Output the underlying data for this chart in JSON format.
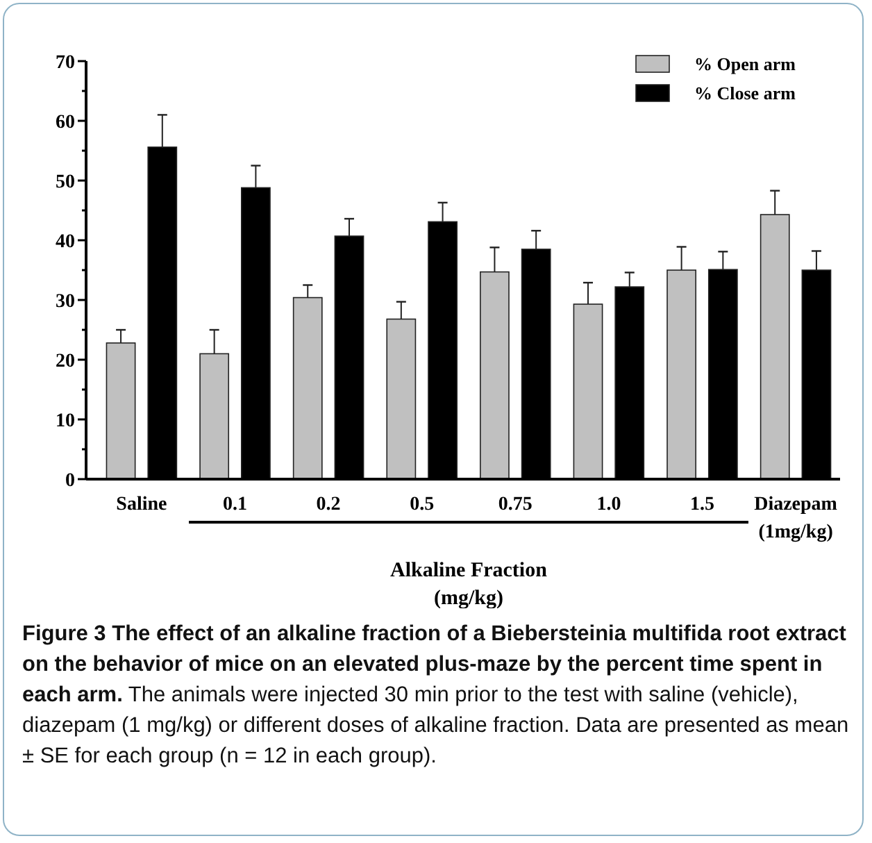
{
  "chart_data": {
    "type": "bar",
    "title": "Figure 3 The effect of an alkaline fraction of a Biebersteinia multifida root extract on the behavior of mice on an elevated plus-maze by the percent time spent in each arm.",
    "xlabel": "Alkaline Fraction\n(mg/kg)",
    "annotations": [
      "The animals were injected 30 min prior to the test with saline (vehicle), diazepam (1 mg/kg) or different doses of alkaline fraction. Data are presented as mean ± SE for each group (n = 12 in each group)."
    ],
    "categories": [
      "Saline",
      "0.1",
      "0.2",
      "0.5",
      "0.75",
      "1.0",
      "1.5",
      "Diazepam\n(1mg/kg)"
    ],
    "series": [
      {
        "name": "% Open arm",
        "color": "#c0c0c0",
        "values": [
          22.8,
          21,
          30.4,
          26.8,
          34.7,
          29.3,
          35,
          44.3
        ],
        "errors": [
          [
            22.8,
            25
          ],
          [
            21,
            25
          ],
          [
            30.4,
            32.5
          ],
          [
            26.8,
            29.7
          ],
          [
            34.7,
            38.8
          ],
          [
            29.3,
            32.9
          ],
          [
            35,
            38.9
          ],
          [
            44.3,
            48.3
          ]
        ]
      },
      {
        "name": "% Close arm",
        "color": "#000000",
        "values": [
          55.6,
          48.8,
          40.7,
          43.1,
          38.5,
          32.2,
          35.1,
          35
        ],
        "errors": [
          [
            55.6,
            61
          ],
          [
            48.8,
            52.5
          ],
          [
            40.7,
            43.6
          ],
          [
            43.1,
            46.3
          ],
          [
            38.5,
            41.6
          ],
          [
            32.2,
            34.6
          ],
          [
            35.1,
            38.1
          ],
          [
            35,
            38.2
          ]
        ]
      }
    ],
    "ylim": [
      0,
      70
    ],
    "yticks": [
      0,
      {
        "value": 5,
        "label": null
      },
      10,
      {
        "value": 15,
        "label": null
      },
      20,
      {
        "value": 25,
        "label": null
      },
      30,
      {
        "value": 35,
        "label": null
      },
      40,
      {
        "value": 45,
        "label": null
      },
      50,
      {
        "value": 55,
        "label": null
      },
      60,
      {
        "value": 65,
        "label": null
      },
      70
    ],
    "grid": false,
    "legend": "top right"
  }
}
